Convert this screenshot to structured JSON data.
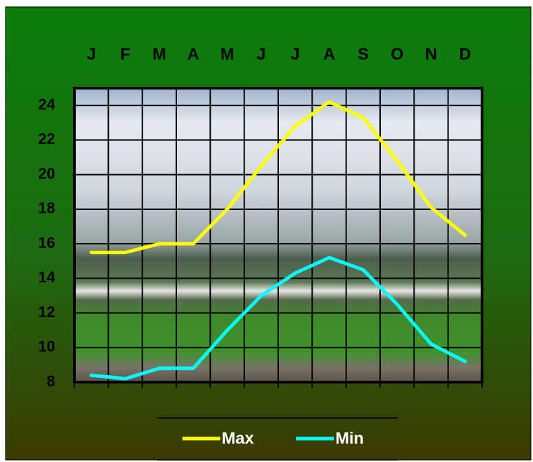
{
  "chart_data": {
    "type": "line",
    "categories": [
      "J",
      "F",
      "M",
      "A",
      "M",
      "J",
      "J",
      "A",
      "S",
      "O",
      "N",
      "D"
    ],
    "series": [
      {
        "name": "Max",
        "color": "#ffff00",
        "values": [
          15.5,
          15.5,
          16,
          16,
          18,
          20.5,
          22.8,
          24.2,
          23.3,
          20.8,
          18.1,
          16.5
        ]
      },
      {
        "name": "Min",
        "color": "#00ffff",
        "values": [
          8.4,
          8.2,
          8.8,
          8.8,
          11,
          13,
          14.3,
          15.2,
          14.5,
          12.5,
          10.2,
          9.2
        ]
      }
    ],
    "ylim": [
      8,
      25
    ],
    "yticks": [
      8,
      10,
      12,
      14,
      16,
      18,
      20,
      22,
      24
    ],
    "grid": true
  }
}
